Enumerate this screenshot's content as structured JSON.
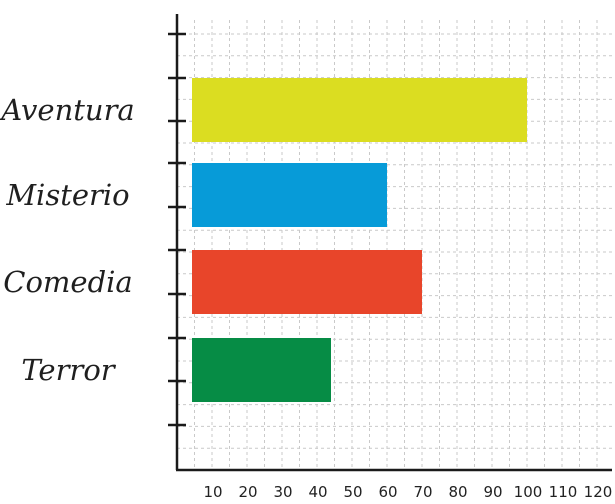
{
  "chart_data": {
    "type": "bar",
    "orientation": "horizontal",
    "title": "",
    "xlabel": "",
    "ylabel": "",
    "categories": [
      "Aventura",
      "Misterio",
      "Comedia",
      "Terror"
    ],
    "values": [
      100,
      60,
      70,
      44
    ],
    "colors": [
      "#dbdd21",
      "#079bd8",
      "#e8452a",
      "#068c45"
    ],
    "x_ticks": [
      10,
      20,
      30,
      40,
      50,
      60,
      70,
      80,
      90,
      100,
      110,
      120
    ],
    "xlim": [
      0,
      120
    ],
    "grid": true,
    "legend": "none"
  }
}
